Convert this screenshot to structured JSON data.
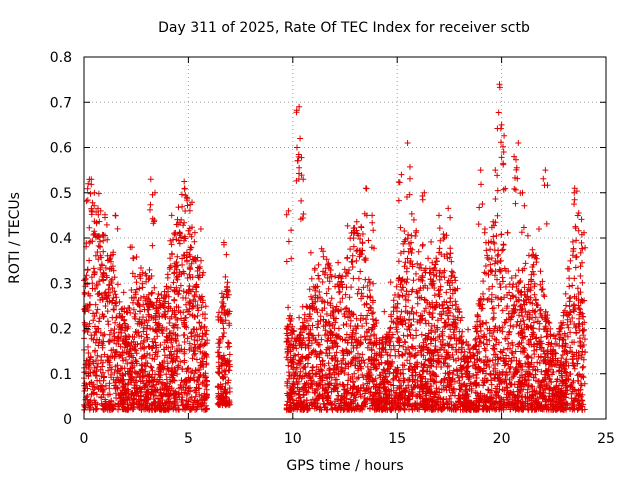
{
  "chart_data": {
    "type": "scatter",
    "title": "Day 311 of 2025, Rate Of TEC Index for receiver sctb",
    "xlabel": "GPS time / hours",
    "ylabel": "ROTI / TECUs",
    "xlim": [
      0,
      25
    ],
    "ylim": [
      0,
      0.8
    ],
    "xticks": [
      "0",
      "5",
      "10",
      "15",
      "20",
      "25"
    ],
    "yticks": [
      "0",
      "0.1",
      "0.2",
      "0.3",
      "0.4",
      "0.5",
      "0.6",
      "0.7",
      "0.8"
    ],
    "grid": true,
    "marker": "plus",
    "color": "#e00000",
    "series": [
      {
        "name": "ROTI",
        "note": "dense point cloud; envelope given as [t_start, t_end, typical_min, typical_max]",
        "segments": [
          [
            0.0,
            5.9,
            0.02,
            0.35
          ],
          [
            6.4,
            7.0,
            0.03,
            0.3
          ],
          [
            9.7,
            24.0,
            0.02,
            0.33
          ]
        ],
        "peaks": [
          [
            0.2,
            0.52
          ],
          [
            0.35,
            0.53
          ],
          [
            0.5,
            0.5
          ],
          [
            0.8,
            0.46
          ],
          [
            1.5,
            0.45
          ],
          [
            2.3,
            0.38
          ],
          [
            3.2,
            0.53
          ],
          [
            3.4,
            0.5
          ],
          [
            4.2,
            0.45
          ],
          [
            4.5,
            0.43
          ],
          [
            5.1,
            0.38
          ],
          [
            5.6,
            0.42
          ],
          [
            6.7,
            0.39
          ],
          [
            9.8,
            0.46
          ],
          [
            10.2,
            0.6
          ],
          [
            10.3,
            0.69
          ],
          [
            10.35,
            0.62
          ],
          [
            10.5,
            0.53
          ],
          [
            13.5,
            0.51
          ],
          [
            13.8,
            0.45
          ],
          [
            15.2,
            0.54
          ],
          [
            15.5,
            0.61
          ],
          [
            15.8,
            0.44
          ],
          [
            16.3,
            0.5
          ],
          [
            17.0,
            0.45
          ],
          [
            19.0,
            0.55
          ],
          [
            19.2,
            0.42
          ],
          [
            19.7,
            0.55
          ],
          [
            19.9,
            0.74
          ],
          [
            20.0,
            0.65
          ],
          [
            20.1,
            0.59
          ],
          [
            20.6,
            0.58
          ],
          [
            20.8,
            0.61
          ],
          [
            21.0,
            0.5
          ],
          [
            22.1,
            0.55
          ],
          [
            23.5,
            0.51
          ]
        ]
      }
    ]
  }
}
